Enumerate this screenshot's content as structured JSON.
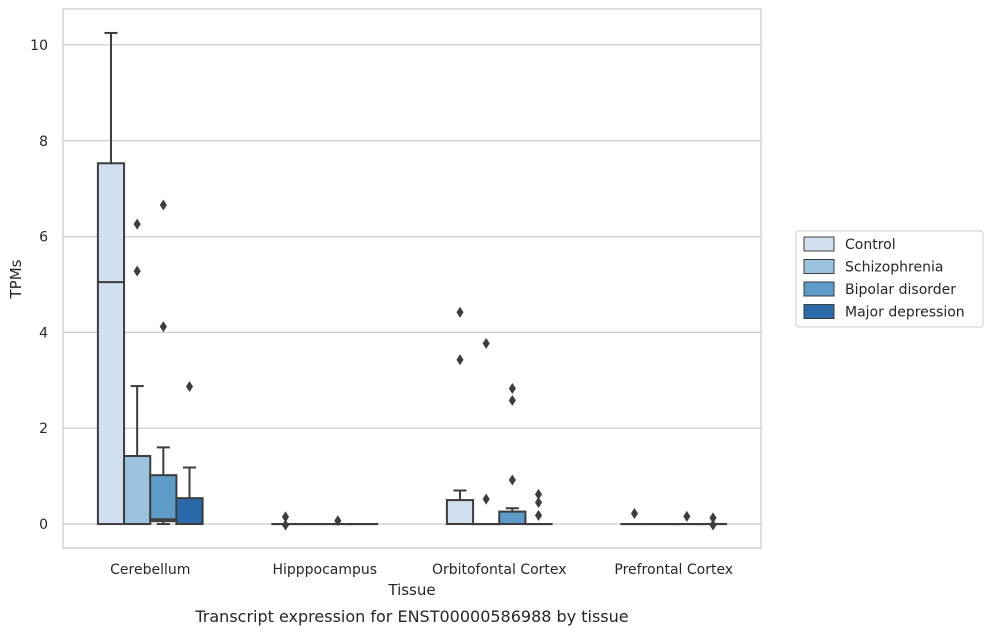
{
  "chart_data": {
    "type": "box",
    "title": "Transcript expression for ENST00000586988 by tissue",
    "xlabel": "Tissue",
    "ylabel": "TPMs",
    "ylim": [
      -0.5,
      10.75
    ],
    "yticks": [
      0,
      2,
      4,
      6,
      8,
      10
    ],
    "grid": "horizontal",
    "legend_position": "right",
    "categories": [
      "Cerebellum",
      "Hipppocampus",
      "Orbitofontal Cortex",
      "Prefrontal Cortex"
    ],
    "series": [
      {
        "name": "Control",
        "color": "#d0e0ef",
        "boxes": [
          {
            "q1": 0.0,
            "median": 5.05,
            "q3": 7.53,
            "whisker_low": 0.0,
            "whisker_high": 10.25,
            "outliers": []
          },
          {
            "q1": 0.0,
            "median": 0.0,
            "q3": 0.0,
            "whisker_low": 0.0,
            "whisker_high": 0.0,
            "outliers": [
              0.15,
              -0.02
            ]
          },
          {
            "q1": 0.0,
            "median": 0.0,
            "q3": 0.5,
            "whisker_low": 0.0,
            "whisker_high": 0.7,
            "outliers": [
              4.42,
              3.43
            ]
          },
          {
            "q1": 0.0,
            "median": 0.0,
            "q3": 0.0,
            "whisker_low": 0.0,
            "whisker_high": 0.0,
            "outliers": [
              0.22
            ]
          }
        ]
      },
      {
        "name": "Schizophrenia",
        "color": "#9ac4dd",
        "boxes": [
          {
            "q1": 0.0,
            "median": 0.0,
            "q3": 1.42,
            "whisker_low": 0.0,
            "whisker_high": 2.88,
            "outliers": [
              6.26,
              5.28
            ]
          },
          {
            "q1": 0.0,
            "median": 0.0,
            "q3": 0.0,
            "whisker_low": 0.0,
            "whisker_high": 0.0,
            "outliers": []
          },
          {
            "q1": 0.0,
            "median": 0.0,
            "q3": 0.0,
            "whisker_low": 0.0,
            "whisker_high": 0.0,
            "outliers": [
              3.77,
              0.52
            ]
          },
          {
            "q1": 0.0,
            "median": 0.0,
            "q3": 0.0,
            "whisker_low": 0.0,
            "whisker_high": 0.0,
            "outliers": []
          }
        ]
      },
      {
        "name": "Bipolar disorder",
        "color": "#5d9cc9",
        "boxes": [
          {
            "q1": 0.06,
            "median": 0.1,
            "q3": 1.02,
            "whisker_low": 0.0,
            "whisker_high": 1.6,
            "outliers": [
              6.66,
              4.12
            ]
          },
          {
            "q1": 0.0,
            "median": 0.0,
            "q3": 0.0,
            "whisker_low": 0.0,
            "whisker_high": 0.0,
            "outliers": [
              0.07
            ]
          },
          {
            "q1": 0.0,
            "median": 0.0,
            "q3": 0.26,
            "whisker_low": 0.0,
            "whisker_high": 0.33,
            "outliers": [
              2.83,
              2.58,
              0.92
            ]
          },
          {
            "q1": 0.0,
            "median": 0.0,
            "q3": 0.0,
            "whisker_low": 0.0,
            "whisker_high": 0.0,
            "outliers": [
              0.16
            ]
          }
        ]
      },
      {
        "name": "Major depression",
        "color": "#2b6aa8",
        "boxes": [
          {
            "q1": 0.0,
            "median": 0.0,
            "q3": 0.54,
            "whisker_low": 0.0,
            "whisker_high": 1.18,
            "outliers": [
              2.87
            ]
          },
          {
            "q1": 0.0,
            "median": 0.0,
            "q3": 0.0,
            "whisker_low": 0.0,
            "whisker_high": 0.0,
            "outliers": []
          },
          {
            "q1": 0.0,
            "median": 0.0,
            "q3": 0.0,
            "whisker_low": 0.0,
            "whisker_high": 0.0,
            "outliers": [
              0.62,
              0.45,
              0.18
            ]
          },
          {
            "q1": 0.0,
            "median": 0.0,
            "q3": 0.0,
            "whisker_low": 0.0,
            "whisker_high": 0.0,
            "outliers": [
              0.13,
              -0.02
            ]
          }
        ]
      }
    ]
  }
}
